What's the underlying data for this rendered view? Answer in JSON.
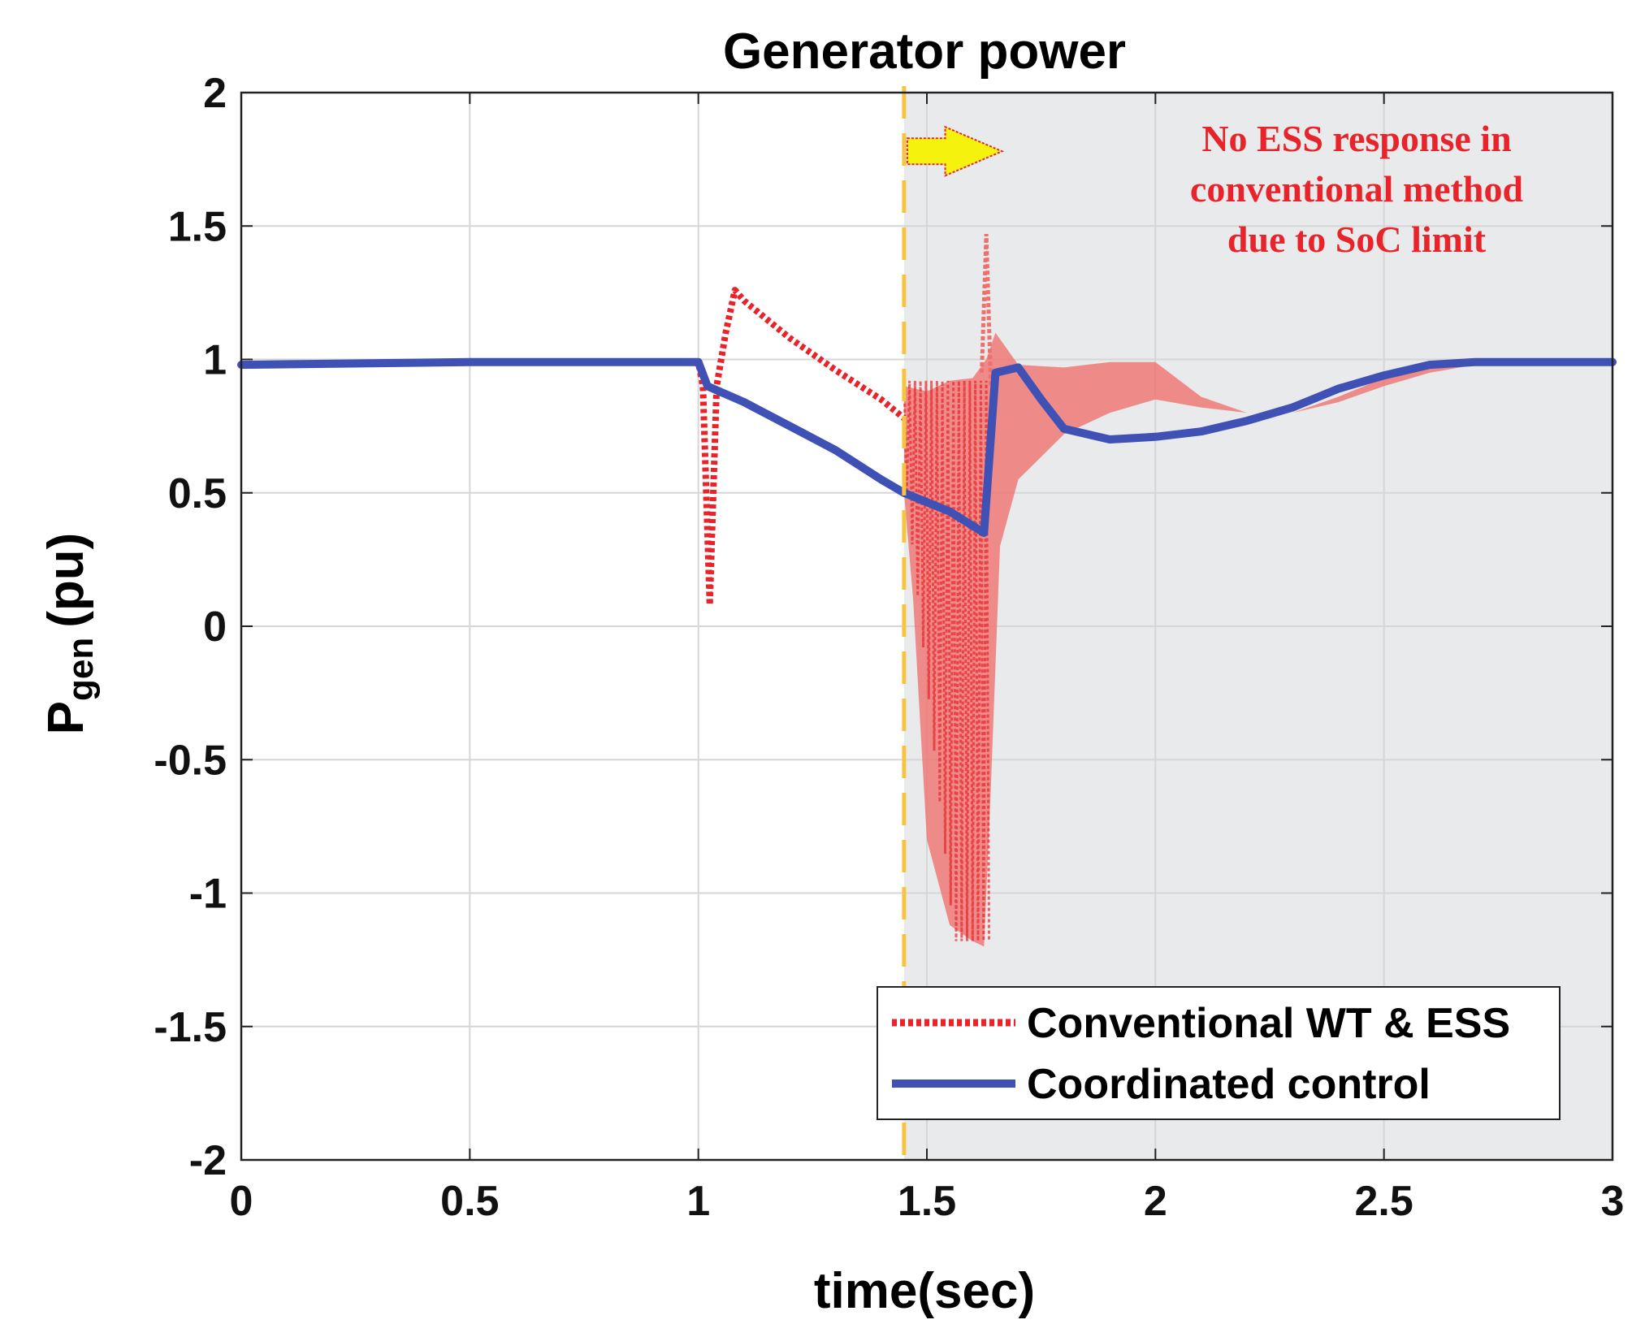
{
  "chart_data": {
    "type": "line",
    "title": "Generator power",
    "xlabel": "time(sec)",
    "ylabel_main": "P",
    "ylabel_sub": "gen",
    "ylabel_unit": "(pu)",
    "xlim": [
      0,
      3
    ],
    "ylim": [
      -2,
      2
    ],
    "x_ticks": [
      0,
      0.5,
      1,
      1.5,
      2,
      2.5,
      3
    ],
    "x_tick_labels": [
      "0",
      "0.5",
      "1",
      "1.5",
      "2",
      "2.5",
      "3"
    ],
    "y_ticks": [
      2,
      1.5,
      1,
      0.5,
      0,
      -0.5,
      -1,
      -1.5,
      -2
    ],
    "y_tick_labels": [
      "2",
      "1.5",
      "1",
      "0.5",
      "0",
      "-0.5",
      "-1",
      "-1.5",
      "-2"
    ],
    "grid": true,
    "shaded_region": {
      "x_start": 1.45,
      "x_end": 3,
      "color": "#e9eaec"
    },
    "marker_line": {
      "x": 1.45,
      "color": "#f5c542",
      "style": "dashed"
    },
    "annotation": {
      "lines": [
        "No ESS response in",
        "conventional method",
        "due to SoC limit"
      ],
      "color": "#e8242a",
      "arrow_from_x": 1.45,
      "arrow_to_x": 1.7,
      "arrow_y": 1.78
    },
    "legend": {
      "position": "bottom-right",
      "entries": [
        {
          "label": "Conventional WT & ESS",
          "color": "#e8242a",
          "style": "dotted"
        },
        {
          "label": "Coordinated control",
          "color": "#3f51b5",
          "style": "solid"
        }
      ]
    },
    "series": [
      {
        "name": "Conventional WT & ESS",
        "color": "#e8242a",
        "style": "dotted",
        "x": [
          0,
          0.5,
          1.0,
          1.01,
          1.025,
          1.04,
          1.06,
          1.08,
          1.1,
          1.2,
          1.3,
          1.4,
          1.45
        ],
        "y": [
          0.98,
          0.99,
          0.99,
          0.9,
          0.08,
          0.9,
          1.1,
          1.26,
          1.22,
          1.08,
          0.96,
          0.85,
          0.78
        ]
      },
      {
        "name": "Conventional WT & ESS (oscillation envelope upper)",
        "color": "#ef6f6c",
        "x": [
          1.45,
          1.5,
          1.55,
          1.6,
          1.63,
          1.65,
          1.7,
          1.8,
          1.9,
          2.0,
          2.1,
          2.2,
          2.3,
          2.4,
          2.5,
          2.6,
          2.7,
          2.8,
          3.0
        ],
        "y": [
          0.9,
          0.88,
          0.92,
          0.93,
          1.0,
          1.1,
          0.98,
          0.97,
          0.99,
          0.99,
          0.86,
          0.8,
          0.8,
          0.86,
          0.93,
          0.97,
          0.99,
          0.99,
          0.99
        ]
      },
      {
        "name": "Conventional WT & ESS (oscillation envelope lower)",
        "color": "#ef6f6c",
        "x": [
          1.45,
          1.47,
          1.5,
          1.55,
          1.6,
          1.625,
          1.64,
          1.66,
          1.7,
          1.8,
          1.9,
          2.0,
          2.1,
          2.2,
          2.3,
          2.4,
          2.5,
          2.6,
          2.7,
          2.8,
          3.0
        ],
        "y": [
          0.5,
          0.1,
          -0.8,
          -1.12,
          -1.18,
          -1.2,
          -0.6,
          0.3,
          0.55,
          0.72,
          0.8,
          0.85,
          0.82,
          0.8,
          0.8,
          0.84,
          0.9,
          0.95,
          0.98,
          0.99,
          0.99
        ]
      },
      {
        "name": "Coordinated control",
        "color": "#3f51b5",
        "style": "solid",
        "x": [
          0,
          0.5,
          1.0,
          1.02,
          1.1,
          1.2,
          1.3,
          1.4,
          1.45,
          1.55,
          1.625,
          1.65,
          1.7,
          1.75,
          1.8,
          1.9,
          2.0,
          2.1,
          2.2,
          2.3,
          2.4,
          2.5,
          2.6,
          2.7,
          2.8,
          3.0
        ],
        "y": [
          0.98,
          0.99,
          0.99,
          0.9,
          0.84,
          0.75,
          0.66,
          0.55,
          0.5,
          0.43,
          0.35,
          0.95,
          0.97,
          0.85,
          0.74,
          0.7,
          0.71,
          0.73,
          0.77,
          0.82,
          0.89,
          0.94,
          0.98,
          0.99,
          0.99,
          0.99
        ]
      }
    ]
  }
}
